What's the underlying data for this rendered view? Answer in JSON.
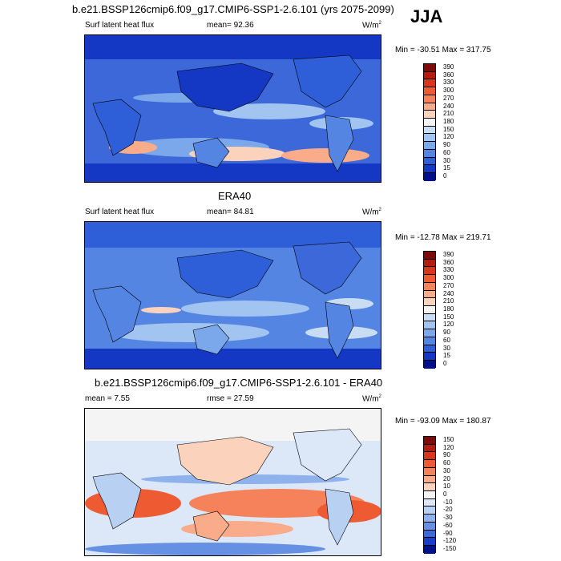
{
  "season": "JJA",
  "panel1": {
    "title": "b.e21.BSSP126cmip6.f09_g17.CMIP6-SSP1-2.6.101 (yrs 2075-2099)",
    "variable": "Surf latent heat flux",
    "mean": "mean=  92.36",
    "units": "W/m",
    "units_sup": "2",
    "minmax": "Min = -30.51 Max = 317.75",
    "levels": [
      "390",
      "360",
      "330",
      "300",
      "270",
      "240",
      "210",
      "180",
      "150",
      "120",
      "90",
      "60",
      "30",
      "15",
      "0"
    ],
    "colors": [
      "#7f0a0a",
      "#b41c12",
      "#d8361c",
      "#ee5a32",
      "#f5825a",
      "#f9ab8a",
      "#fbd2bc",
      "#f4f4f4",
      "#c8dcf4",
      "#a2c4f0",
      "#7aa8ea",
      "#5585e2",
      "#2f5fd8",
      "#1437c4",
      "#000f8a"
    ]
  },
  "panel2": {
    "title": "ERA40",
    "variable": "Surf latent heat flux",
    "mean": "mean=  84.81",
    "units": "W/m",
    "units_sup": "2",
    "minmax": "Min = -12.78 Max = 219.71",
    "levels": [
      "390",
      "360",
      "330",
      "300",
      "270",
      "240",
      "210",
      "180",
      "150",
      "120",
      "90",
      "60",
      "30",
      "15",
      "0"
    ],
    "colors": [
      "#7f0a0a",
      "#b41c12",
      "#d8361c",
      "#ee5a32",
      "#f5825a",
      "#f9ab8a",
      "#fbd2bc",
      "#f4f4f4",
      "#c8dcf4",
      "#a2c4f0",
      "#7aa8ea",
      "#5585e2",
      "#2f5fd8",
      "#1437c4",
      "#000f8a"
    ]
  },
  "panel3": {
    "title": "b.e21.BSSP126cmip6.f09_g17.CMIP6-SSP1-2.6.101 - ERA40",
    "mean": "mean =   7.55",
    "rmse": "rmse =  27.59",
    "units": "W/m",
    "units_sup": "2",
    "minmax": "Min = -93.09 Max = 180.87",
    "levels": [
      "150",
      "120",
      "90",
      "60",
      "30",
      "20",
      "10",
      "0",
      "-10",
      "-20",
      "-30",
      "-60",
      "-90",
      "-120",
      "-150"
    ],
    "colors": [
      "#7f0a0a",
      "#b41c12",
      "#d8361c",
      "#ee5a32",
      "#f5825a",
      "#f9ab8a",
      "#fbd2bc",
      "#f4f4f4",
      "#dce8f8",
      "#b8d0f2",
      "#8fb2ec",
      "#6690e4",
      "#3c68da",
      "#1a3ec8",
      "#000f8a"
    ]
  }
}
